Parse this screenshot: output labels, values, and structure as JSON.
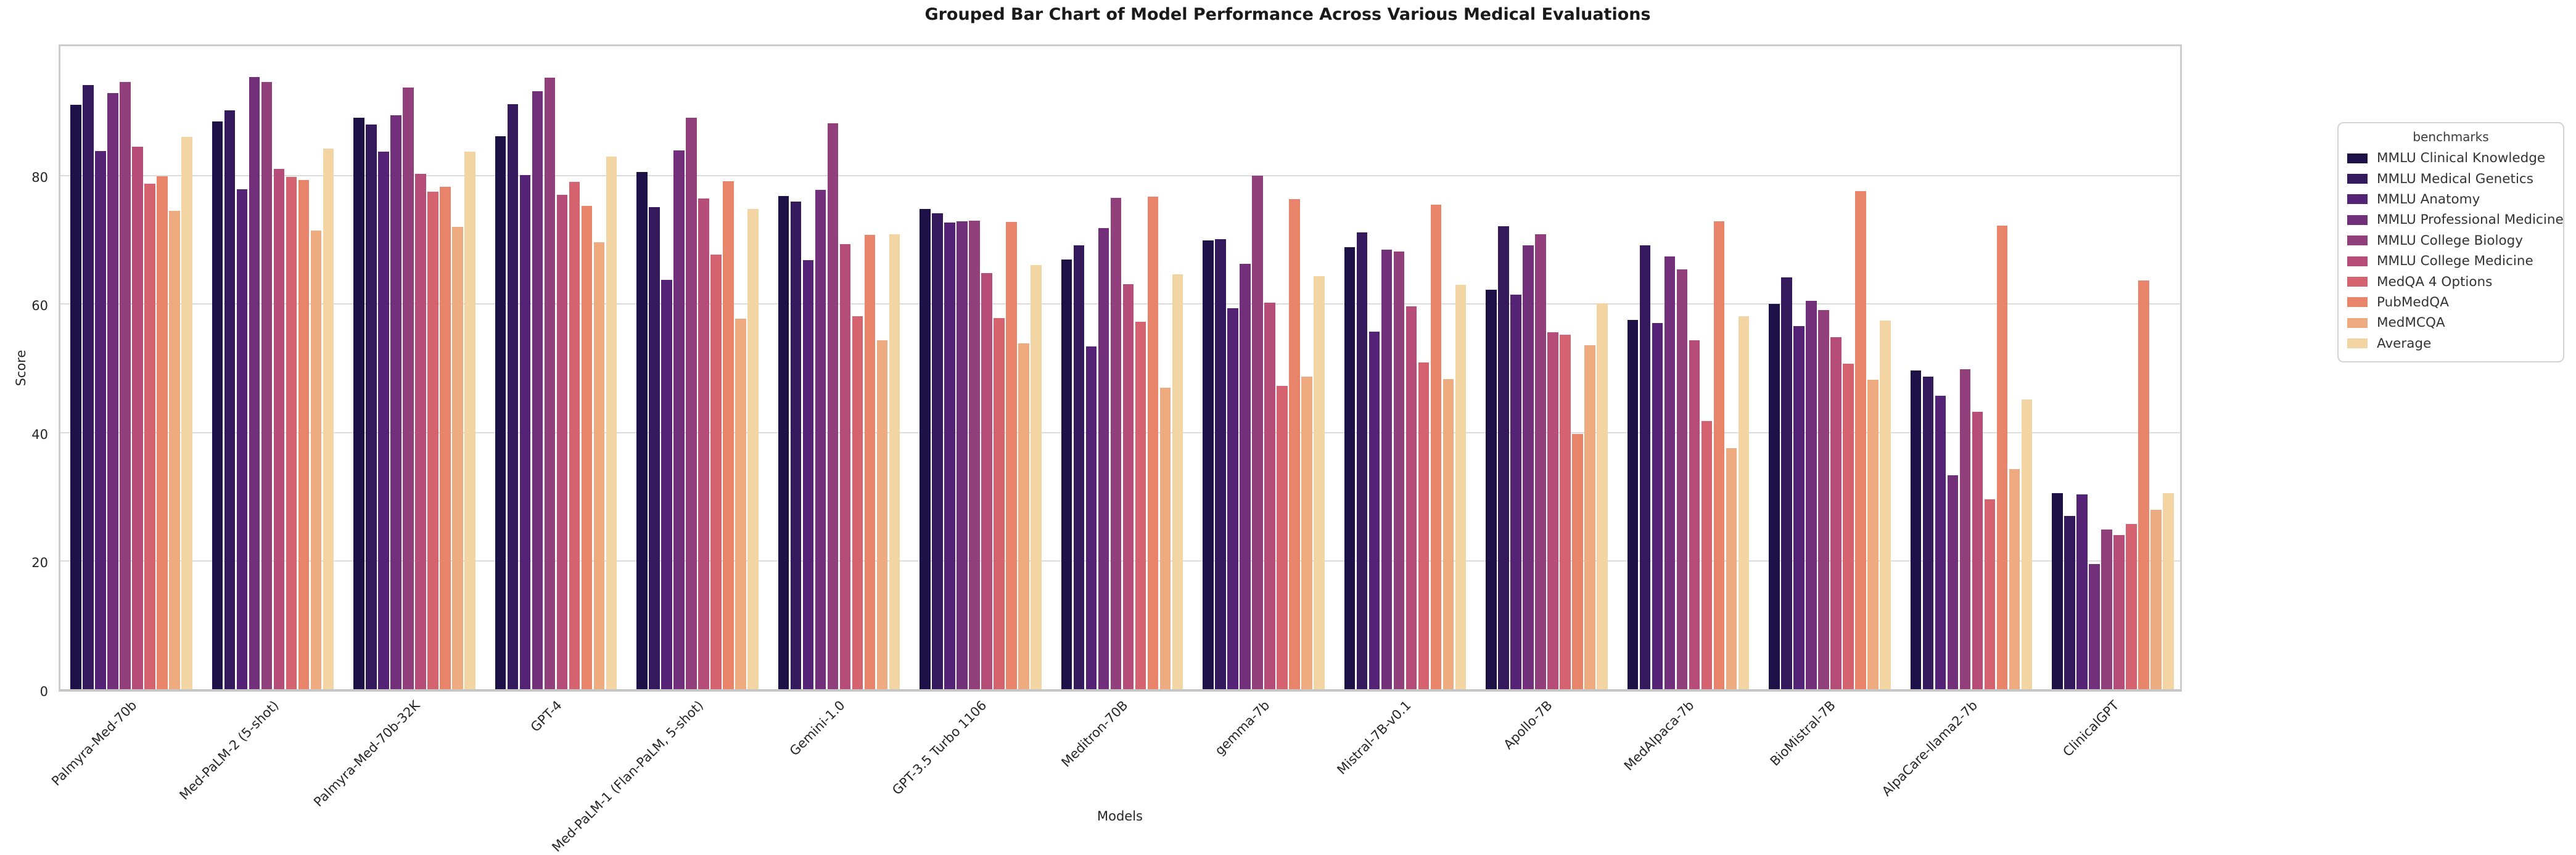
{
  "chart_data": {
    "type": "bar",
    "title": "Grouped Bar Chart of Model Performance Across Various Medical Evaluations",
    "xlabel": "Models",
    "ylabel": "Score",
    "ylim": [
      0,
      100
    ],
    "yticks": [
      0,
      20,
      40,
      60,
      80
    ],
    "grid": true,
    "legend_title": "benchmarks",
    "legend_position": "right",
    "categories": [
      "Palmyra-Med-70b",
      "Med-PaLM-2 (5-shot)",
      "Palmyra-Med-70b-32K",
      "GPT-4",
      "Med-PaLM-1 (Flan-PaLM, 5-shot)",
      "Gemini-1.0",
      "GPT-3.5 Turbo 1106",
      "Meditron-70B",
      "gemma-7b",
      "Mistral-7B-v0.1",
      "Apollo-7B",
      "MedAlpaca-7b",
      "BioMistral-7B",
      "AlpaCare-llama2-7b",
      "ClinicalGPT"
    ],
    "series": [
      {
        "name": "MMLU Clinical Knowledge",
        "color": "#1d1147",
        "values": [
          90.9,
          88.3,
          88.9,
          86.0,
          80.4,
          76.7,
          74.7,
          66.8,
          69.8,
          68.7,
          62.1,
          57.4,
          59.9,
          49.6,
          30.5
        ]
      },
      {
        "name": "MMLU Medical Genetics",
        "color": "#34195c",
        "values": [
          94.0,
          90.0,
          87.8,
          91.0,
          75.0,
          75.8,
          74.0,
          69.0,
          70.0,
          71.0,
          72.0,
          69.0,
          64.0,
          48.6,
          26.9
        ]
      },
      {
        "name": "MMLU Anatomy",
        "color": "#552376",
        "values": [
          83.7,
          77.8,
          83.6,
          80.0,
          63.7,
          66.7,
          72.6,
          53.3,
          59.3,
          55.6,
          61.4,
          57.0,
          56.5,
          45.6,
          30.3
        ]
      },
      {
        "name": "MMLU Professional Medicine",
        "color": "#72307a",
        "values": [
          92.7,
          95.2,
          89.3,
          93.0,
          83.8,
          77.7,
          72.8,
          71.7,
          66.2,
          68.4,
          69.0,
          67.3,
          60.4,
          33.3,
          19.5
        ]
      },
      {
        "name": "MMLU College Biology",
        "color": "#92407c",
        "values": [
          94.4,
          94.4,
          93.6,
          95.1,
          88.9,
          88.0,
          72.9,
          76.4,
          79.9,
          68.1,
          70.8,
          65.3,
          59.0,
          49.8,
          24.8
        ]
      },
      {
        "name": "MMLU College Medicine",
        "color": "#b54d78",
        "values": [
          84.4,
          80.9,
          80.2,
          76.9,
          76.3,
          69.2,
          64.7,
          63.0,
          60.1,
          59.5,
          55.5,
          54.3,
          54.7,
          43.1,
          24.0
        ]
      },
      {
        "name": "MedQA 4 Options",
        "color": "#d5636f",
        "values": [
          78.6,
          79.7,
          77.4,
          78.9,
          67.6,
          58.0,
          57.7,
          57.1,
          47.2,
          50.8,
          55.1,
          41.7,
          50.6,
          29.5,
          25.7
        ]
      },
      {
        "name": "PubMedQA",
        "color": "#e8846a",
        "values": [
          79.8,
          79.2,
          78.1,
          75.2,
          79.0,
          70.7,
          72.7,
          76.6,
          76.2,
          75.4,
          39.7,
          72.8,
          77.5,
          72.1,
          63.6
        ]
      },
      {
        "name": "MedMCQA",
        "color": "#eeab7f",
        "values": [
          74.4,
          71.3,
          71.9,
          69.5,
          57.6,
          54.3,
          53.8,
          46.9,
          48.6,
          48.2,
          53.5,
          37.5,
          48.1,
          34.2,
          27.9
        ]
      },
      {
        "name": "Average",
        "color": "#f3d5a3",
        "values": [
          85.9,
          84.1,
          83.6,
          82.8,
          74.7,
          70.8,
          66.0,
          64.5,
          64.2,
          62.9,
          60.0,
          58.0,
          57.3,
          45.1,
          30.5
        ]
      }
    ]
  }
}
